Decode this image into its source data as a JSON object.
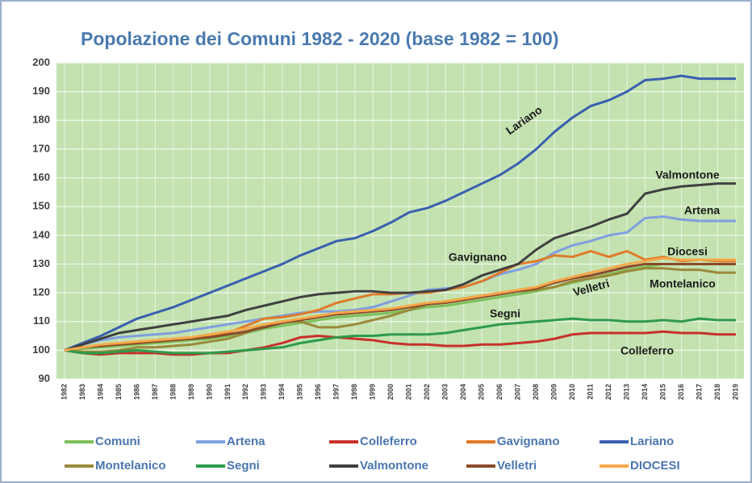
{
  "chart_data": {
    "type": "line",
    "title": "Popolazione dei Comuni 1982 - 2020 (base 1982 = 100)",
    "categories": [
      "1982",
      "1983",
      "1984",
      "1985",
      "1986",
      "1987",
      "1988",
      "1989",
      "1990",
      "1991",
      "1992",
      "1993",
      "1994",
      "1995",
      "1996",
      "1997",
      "1998",
      "1999",
      "2000",
      "2001",
      "2002",
      "2003",
      "2004",
      "2005",
      "2006",
      "2007",
      "2008",
      "2009",
      "2010",
      "2011",
      "2012",
      "2013",
      "2014",
      "2015",
      "2016",
      "2017",
      "2018",
      "2019"
    ],
    "ylim": [
      90,
      200
    ],
    "yticks": [
      90,
      100,
      110,
      120,
      130,
      140,
      150,
      160,
      170,
      180,
      190,
      200
    ],
    "grid": true,
    "annotations": [
      "Lariano",
      "Valmontone",
      "Artena",
      "Diocesi",
      "Gavignano",
      "Velletri",
      "Montelanico",
      "Segni",
      "Colleferro"
    ],
    "series": [
      {
        "name": "Comuni",
        "color": "#7cc05a",
        "values": [
          100,
          100.5,
          101,
          101.5,
          102,
          102.5,
          103,
          103.5,
          104,
          105,
          106,
          107.5,
          108.5,
          109.5,
          110.5,
          111.5,
          112,
          112.5,
          113,
          114,
          115,
          115.5,
          116.5,
          117.5,
          118.5,
          119.5,
          120.5,
          122,
          123.5,
          125,
          126.5,
          128,
          129,
          130,
          130,
          130,
          130,
          130
        ]
      },
      {
        "name": "Artena",
        "color": "#7f9fe0",
        "values": [
          100,
          102,
          103.5,
          104.5,
          105,
          105.5,
          106,
          107,
          108,
          109,
          110,
          111,
          112,
          113,
          113.5,
          113.5,
          114,
          115,
          117,
          119,
          121,
          121.5,
          122,
          124,
          126.5,
          128,
          130,
          134,
          136.5,
          138,
          140,
          141,
          146,
          146.5,
          145.5,
          145,
          145,
          145
        ]
      },
      {
        "name": "Colleferro",
        "color": "#c8302a",
        "values": [
          100,
          99,
          98.5,
          99,
          99,
          99,
          98.5,
          98.5,
          99,
          99,
          100,
          101,
          102.5,
          104.5,
          105,
          104.5,
          104,
          103.5,
          102.5,
          102,
          102,
          101.5,
          101.5,
          102,
          102,
          102.5,
          103,
          104,
          105.5,
          106,
          106,
          106,
          106,
          106.5,
          106,
          106,
          105.5,
          105.5
        ]
      },
      {
        "name": "Gavignano",
        "color": "#e07b2a",
        "values": [
          100,
          101,
          101.5,
          102,
          102.5,
          103,
          104,
          104.5,
          105,
          106,
          108.5,
          111,
          111.5,
          112.5,
          114,
          116.5,
          118,
          119.5,
          119.5,
          120,
          120,
          121,
          122,
          124,
          127,
          130,
          131,
          133,
          132.5,
          134.5,
          132.5,
          134.5,
          131.5,
          132.5,
          131,
          131.5,
          131,
          131
        ]
      },
      {
        "name": "Lariano",
        "color": "#3a5fb0",
        "values": [
          100,
          102.5,
          105,
          108,
          111,
          113,
          115,
          117.5,
          120,
          122.5,
          125,
          127.5,
          130,
          133,
          135.5,
          138,
          139,
          141.5,
          144.5,
          148,
          149.5,
          152,
          155,
          158,
          161,
          165,
          170,
          176,
          181,
          185,
          187,
          190,
          194,
          194.5,
          195.5,
          194.5,
          194.5,
          194.5
        ]
      },
      {
        "name": "Montelanico",
        "color": "#9a8a3a",
        "values": [
          100,
          99.5,
          99.5,
          100,
          101,
          101,
          101.5,
          102,
          103,
          104,
          106,
          109,
          110,
          110,
          108,
          108,
          109,
          110.5,
          112,
          114,
          116,
          117,
          118,
          119,
          120,
          120.5,
          121,
          122,
          124,
          125,
          126,
          127.5,
          128.5,
          128.5,
          128,
          128,
          127,
          127
        ]
      },
      {
        "name": "Segni",
        "color": "#2e9a4a",
        "values": [
          100,
          99,
          99,
          99.5,
          100,
          99.5,
          99,
          99,
          99,
          99.5,
          100,
          100.5,
          101,
          102.5,
          103.5,
          104.5,
          105,
          105,
          105.5,
          105.5,
          105.5,
          106,
          107,
          108,
          109,
          109.5,
          110,
          110.5,
          111,
          110.5,
          110.5,
          110,
          110,
          110.5,
          110,
          111,
          110.5,
          110.5
        ]
      },
      {
        "name": "Valmontone",
        "color": "#404040",
        "values": [
          100,
          102,
          104,
          106,
          107,
          108,
          109,
          110,
          111,
          112,
          114,
          115.5,
          117,
          118.5,
          119.5,
          120,
          120.5,
          120.5,
          120,
          120,
          120.5,
          121,
          123,
          126,
          128,
          130,
          135,
          139,
          141,
          143,
          145.5,
          147.5,
          154.5,
          156,
          157,
          157.5,
          158,
          158
        ]
      },
      {
        "name": "Velletri",
        "color": "#8b4a2a",
        "values": [
          100,
          101,
          101.5,
          102,
          102.5,
          103,
          103.5,
          104,
          104.5,
          105.5,
          106.5,
          108,
          109.5,
          110.5,
          111.5,
          112.5,
          113,
          113.5,
          114,
          115,
          116,
          116.5,
          117.5,
          118.5,
          119.5,
          120.5,
          121.5,
          123.5,
          125,
          126,
          127.5,
          129,
          130,
          130,
          130,
          130,
          130,
          130
        ]
      },
      {
        "name": "DIOCESI",
        "color": "#f5a94a",
        "values": [
          100,
          101,
          102,
          102.5,
          103,
          103.5,
          104,
          104.5,
          105.5,
          106.5,
          107.5,
          109,
          110,
          111,
          112,
          113,
          113.5,
          114,
          114.5,
          115.5,
          116.5,
          117,
          118,
          119,
          120,
          121,
          122,
          124,
          125.5,
          127,
          128.5,
          130,
          131,
          132,
          131.5,
          131.5,
          131.5,
          131.5
        ]
      }
    ]
  }
}
